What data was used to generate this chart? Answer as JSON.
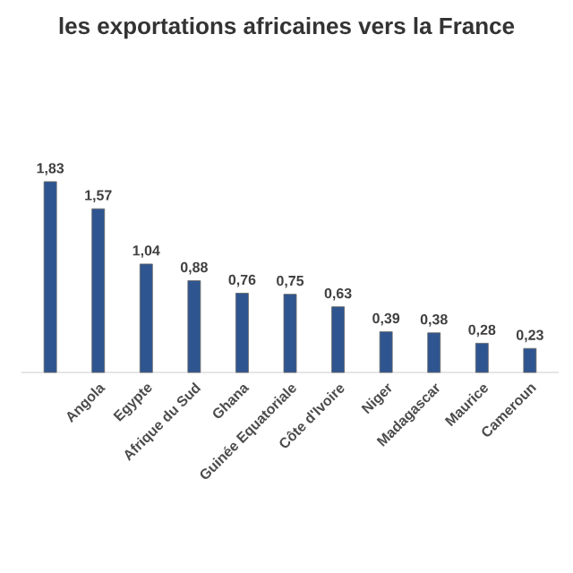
{
  "chart_data": {
    "type": "bar",
    "title": "les exportations africaines vers la France",
    "categories": [
      null,
      "Angola",
      "Egypte",
      "Afrique du Sud",
      "Ghana",
      "Guinée Equatoriale",
      "Côte d'Ivoire",
      "Niger",
      "Madagascar",
      "Maurice",
      "Cameroun"
    ],
    "values": [
      1.83,
      1.57,
      1.04,
      0.88,
      0.76,
      0.75,
      0.63,
      0.39,
      0.38,
      0.28,
      0.23
    ],
    "value_labels": [
      "1,83",
      "1,57",
      "1,04",
      "0,88",
      "0,76",
      "0,75",
      "0,63",
      "0,39",
      "0,38",
      "0,28",
      "0,23"
    ],
    "color": "#2e5590"
  }
}
